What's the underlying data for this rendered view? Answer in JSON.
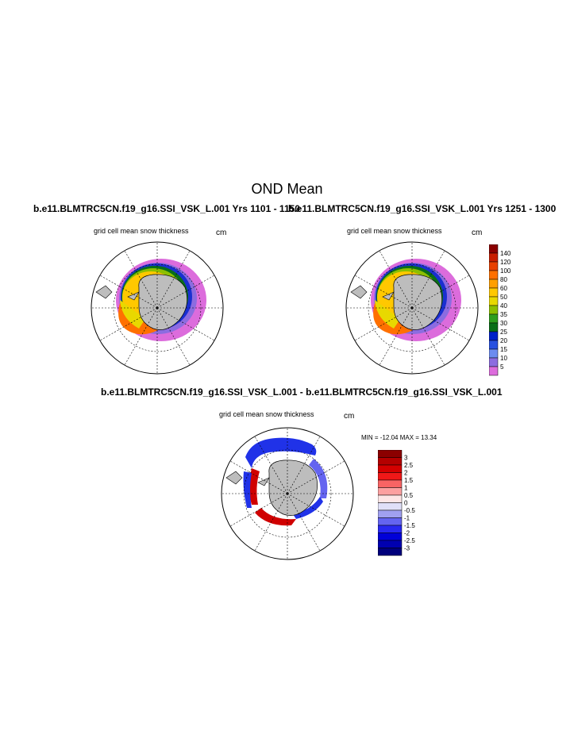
{
  "page_title": "OND Mean",
  "panels": [
    {
      "run_title": "b.e11.BLMTRC5CN.f19_g16.SSI_VSK_L.001  Yrs 1101 - 1150",
      "field": "grid cell mean snow thickness",
      "units": "cm"
    },
    {
      "run_title": "b.e11.BLMTRC5CN.f19_g16.SSI_VSK_L.001  Yrs 1251 - 1300",
      "field": "grid cell mean snow thickness",
      "units": "cm"
    },
    {
      "run_title": "b.e11.BLMTRC5CN.f19_g16.SSI_VSK_L.001 - b.e11.BLMTRC5CN.f19_g16.SSI_VSK_L.001",
      "field": "grid cell mean snow thickness",
      "units": "cm",
      "min_max": "MIN = -12.04 MAX =  13.34"
    }
  ],
  "colorbar_abs": {
    "labels": [
      "140",
      "120",
      "100",
      "80",
      "60",
      "50",
      "40",
      "35",
      "30",
      "25",
      "20",
      "15",
      "10",
      "5"
    ],
    "colors": [
      "#8b0000",
      "#c81e00",
      "#e84000",
      "#ff7000",
      "#ff9f00",
      "#ffc800",
      "#e8d800",
      "#8cbf00",
      "#2d9e1e",
      "#0a6e18",
      "#0020c8",
      "#2850e0",
      "#6c8cf0",
      "#8c6ce0",
      "#dc6cdc"
    ]
  },
  "colorbar_diff": {
    "labels": [
      "3",
      "2.5",
      "2",
      "1.5",
      "1",
      "0.5",
      "0",
      "-0.5",
      "-1",
      "-1.5",
      "-2",
      "-2.5",
      "-3"
    ],
    "colors": [
      "#8b0000",
      "#b40000",
      "#d40000",
      "#f01818",
      "#f86464",
      "#fca0a0",
      "#fde6e6",
      "#e0e0f8",
      "#a0a0f0",
      "#6464f0",
      "#2828f0",
      "#0000d8",
      "#0000b0",
      "#00007c"
    ]
  }
}
